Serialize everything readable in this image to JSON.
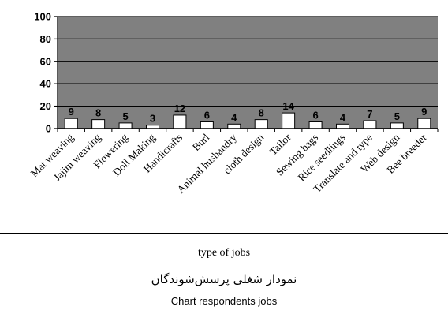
{
  "chart_data": {
    "type": "bar",
    "categories": [
      "Mat weaving",
      "Jajim weaving",
      "Flowering",
      "Doll Making",
      "Handicrafts",
      "Burl",
      "Animal husbandry",
      "cloth design",
      "Tailor",
      "Sewing bags",
      "Rice seedlings",
      "Translate and type",
      "Web design",
      "Bee breeder"
    ],
    "values": [
      9,
      8,
      5,
      3,
      12,
      6,
      4,
      8,
      14,
      6,
      4,
      7,
      5,
      9
    ],
    "ylim": [
      0,
      100
    ],
    "yticks": [
      0,
      20,
      40,
      60,
      80,
      100
    ],
    "xlabel": "type of jobs",
    "grid": true,
    "plot_background": "#808080",
    "bar_color": "#ffffff"
  },
  "caption_persian": "نمودار شغلی پرسش‌شوندگان",
  "caption_english": "Chart respondents jobs"
}
